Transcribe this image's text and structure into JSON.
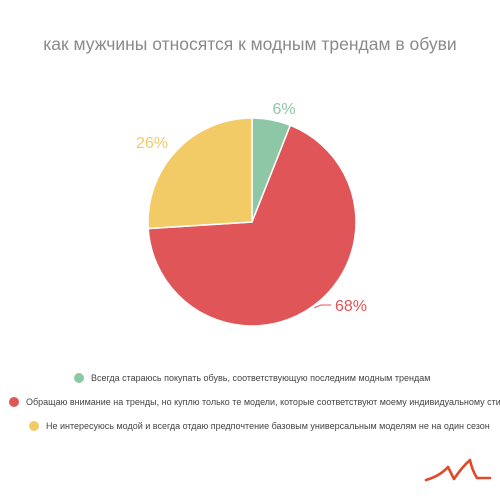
{
  "chart_data": {
    "type": "pie",
    "title": "как мужчины относятся к модным трендам в обуви",
    "slices": [
      {
        "label": "Всегда стараюсь покупать обувь, соответствующую последним модным трендам",
        "value": 6,
        "value_label": "6%",
        "color": "#8dc7a6"
      },
      {
        "label": "Обращаю внимание на тренды, но куплю только те модели, которые соответствуют моему индивидуальному стилю",
        "value": 68,
        "value_label": "68%",
        "color": "#e05558"
      },
      {
        "label": "Не интересуюсь модой и всегда отдаю предпочтение базовым универсальным моделям не на один сезон",
        "value": 26,
        "value_label": "26%",
        "color": "#f3cb66"
      }
    ],
    "legend_position": "bottom"
  },
  "logo": {
    "name": "brand-logo-icon",
    "color": "#e04a2a"
  }
}
